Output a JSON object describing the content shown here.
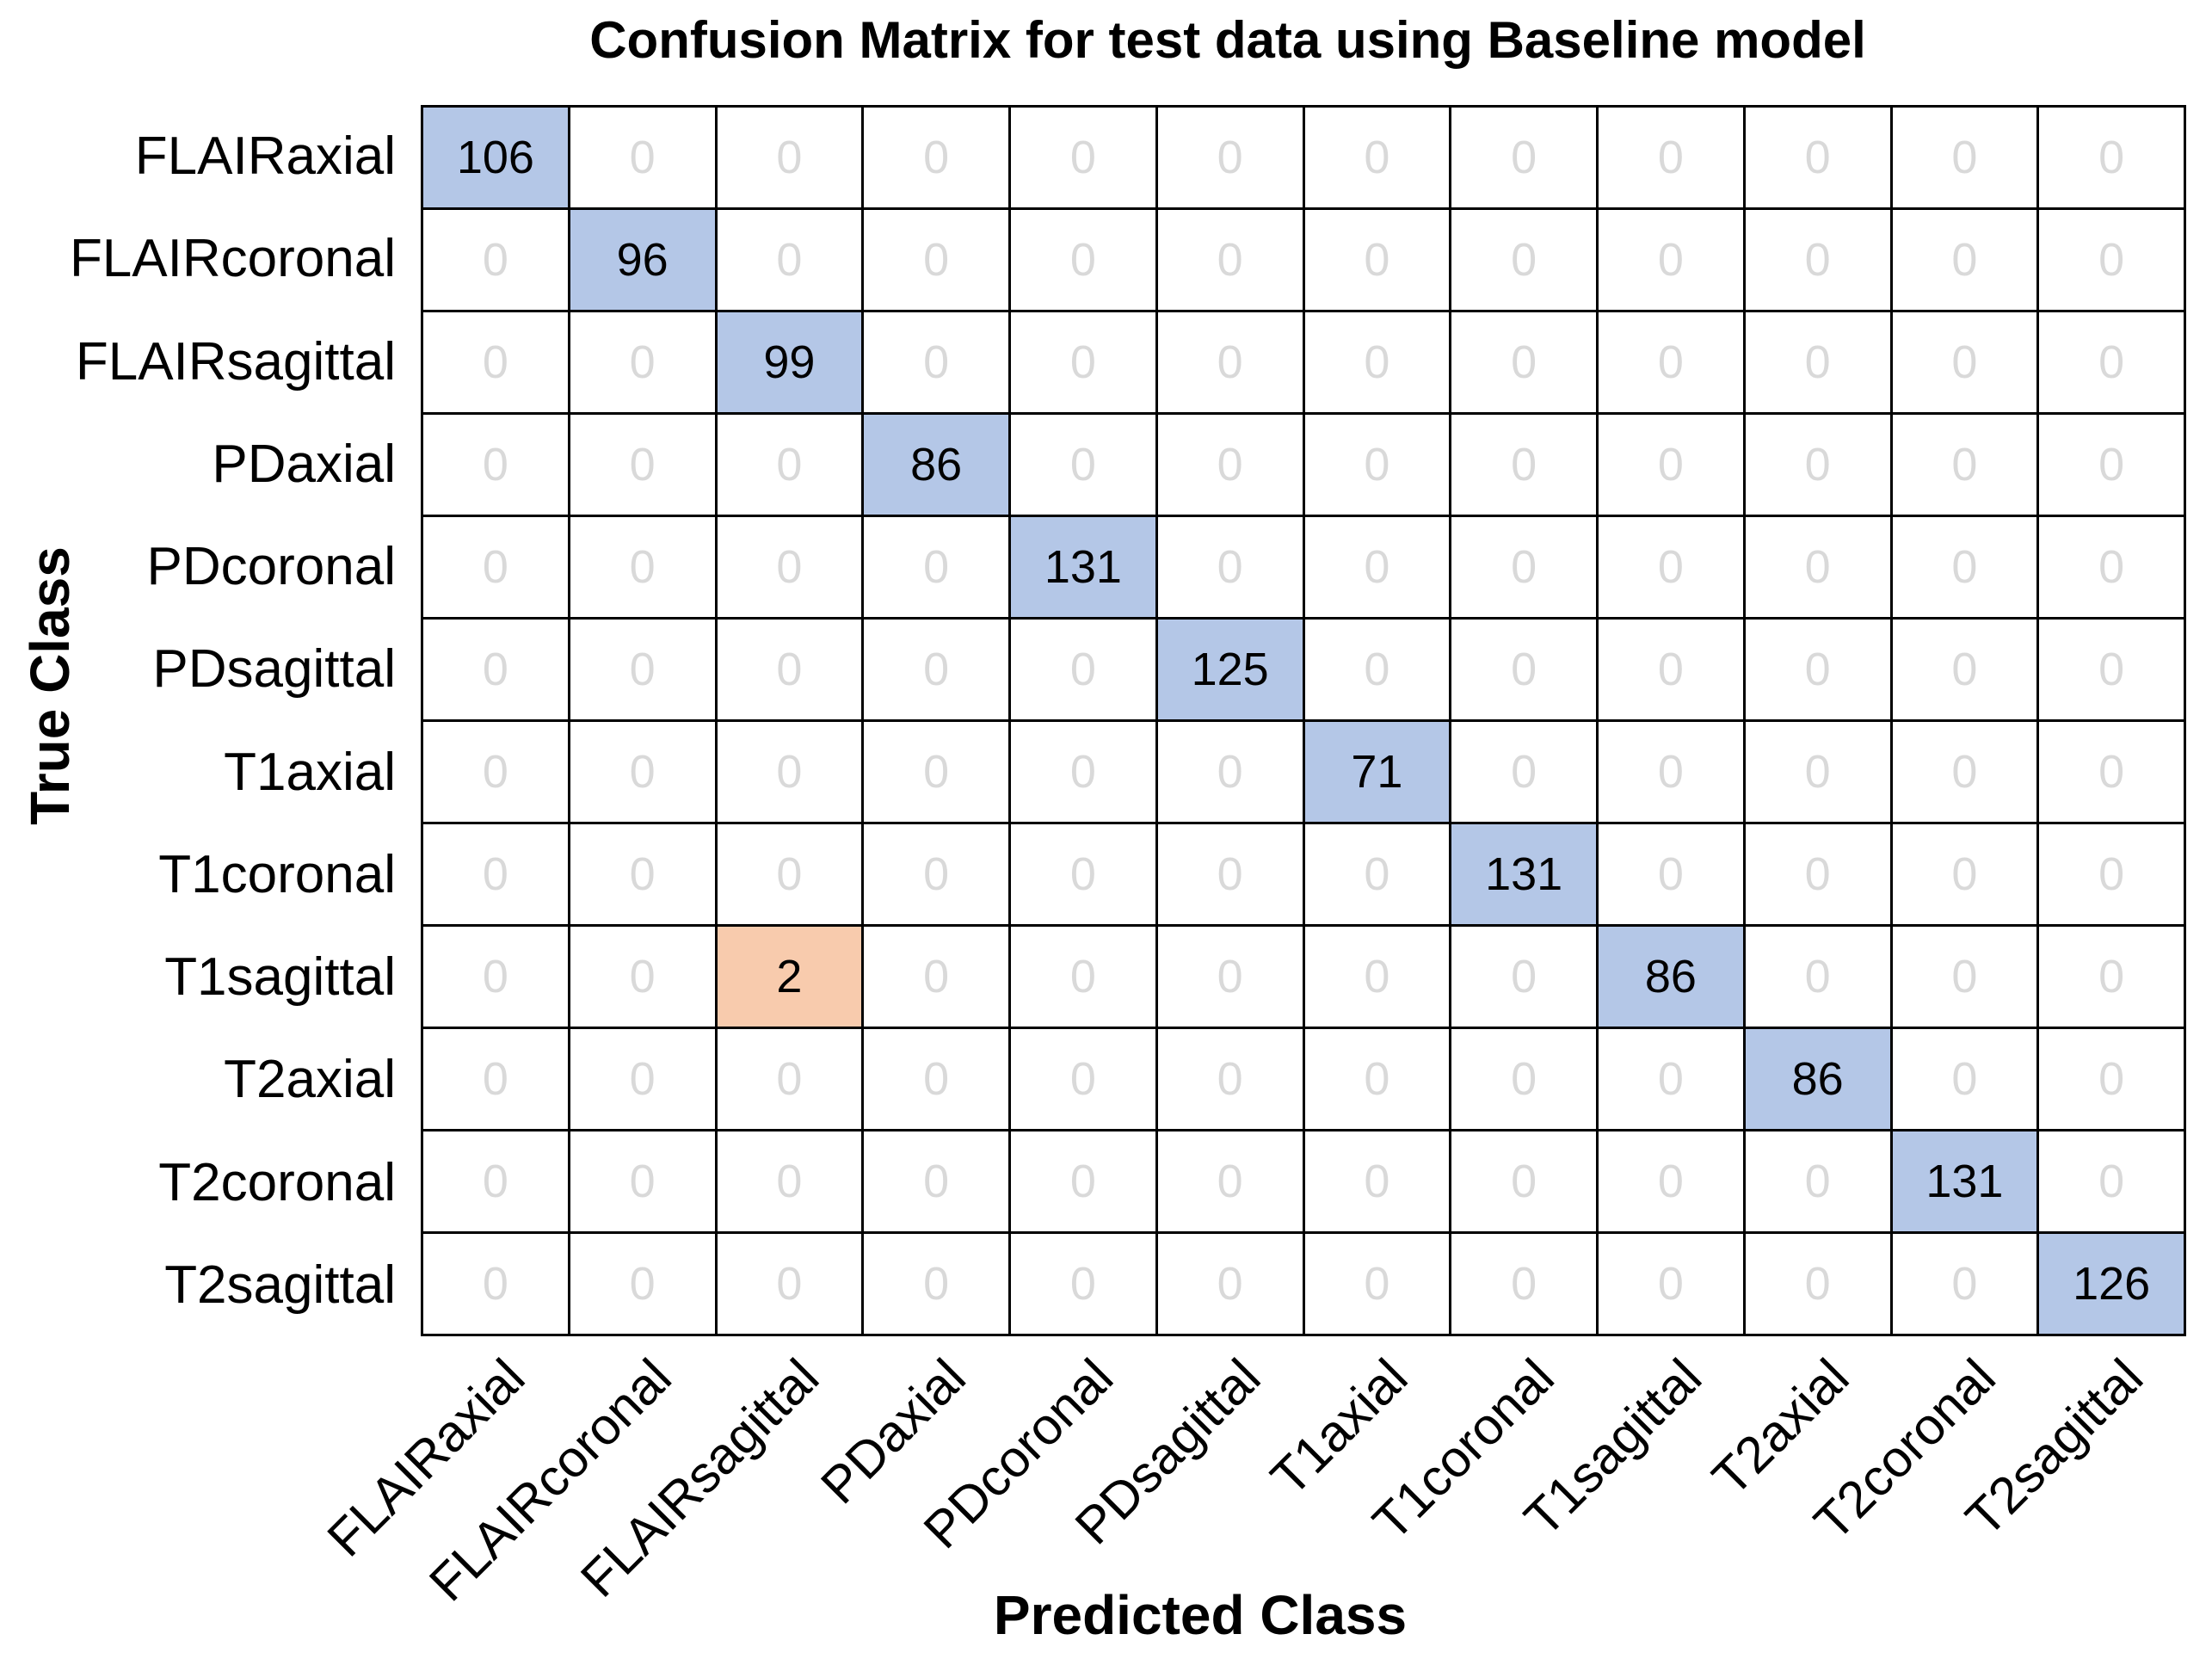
{
  "chart_data": {
    "type": "heatmap",
    "title": "Confusion Matrix for test data using Baseline model",
    "xlabel": "Predicted Class",
    "ylabel": "True Class",
    "x_tick_labels": [
      "FLAIRaxial",
      "FLAIRcoronal",
      "FLAIRsagittal",
      "PDaxial",
      "PDcoronal",
      "PDsagittal",
      "T1axial",
      "T1coronal",
      "T1sagittal",
      "T2axial",
      "T2coronal",
      "T2sagittal"
    ],
    "y_tick_labels": [
      "FLAIRaxial",
      "FLAIRcoronal",
      "FLAIRsagittal",
      "PDaxial",
      "PDcoronal",
      "PDsagittal",
      "T1axial",
      "T1coronal",
      "T1sagittal",
      "T2axial",
      "T2coronal",
      "T2sagittal"
    ],
    "matrix": [
      [
        106,
        0,
        0,
        0,
        0,
        0,
        0,
        0,
        0,
        0,
        0,
        0
      ],
      [
        0,
        96,
        0,
        0,
        0,
        0,
        0,
        0,
        0,
        0,
        0,
        0
      ],
      [
        0,
        0,
        99,
        0,
        0,
        0,
        0,
        0,
        0,
        0,
        0,
        0
      ],
      [
        0,
        0,
        0,
        86,
        0,
        0,
        0,
        0,
        0,
        0,
        0,
        0
      ],
      [
        0,
        0,
        0,
        0,
        131,
        0,
        0,
        0,
        0,
        0,
        0,
        0
      ],
      [
        0,
        0,
        0,
        0,
        0,
        125,
        0,
        0,
        0,
        0,
        0,
        0
      ],
      [
        0,
        0,
        0,
        0,
        0,
        0,
        71,
        0,
        0,
        0,
        0,
        0
      ],
      [
        0,
        0,
        0,
        0,
        0,
        0,
        0,
        131,
        0,
        0,
        0,
        0
      ],
      [
        0,
        0,
        2,
        0,
        0,
        0,
        0,
        0,
        86,
        0,
        0,
        0
      ],
      [
        0,
        0,
        0,
        0,
        0,
        0,
        0,
        0,
        0,
        86,
        0,
        0
      ],
      [
        0,
        0,
        0,
        0,
        0,
        0,
        0,
        0,
        0,
        0,
        131,
        0
      ],
      [
        0,
        0,
        0,
        0,
        0,
        0,
        0,
        0,
        0,
        0,
        0,
        126
      ]
    ],
    "diagonal_values": [
      106,
      96,
      99,
      86,
      131,
      125,
      71,
      131,
      86,
      86,
      131,
      126
    ],
    "off_diagonal_nonzero": [
      {
        "true_class": "T1sagittal",
        "predicted_class": "FLAIRsagittal",
        "value": 2
      }
    ],
    "legend_position": "none",
    "grid": "on",
    "colors": {
      "diagonal_fill": "#b4c7e7",
      "offdiag_nonzero_fill": "#f8cbad",
      "zero_text": "#d9d9d9",
      "value_text": "#000000",
      "grid_line": "#000000",
      "background": "#ffffff"
    }
  }
}
